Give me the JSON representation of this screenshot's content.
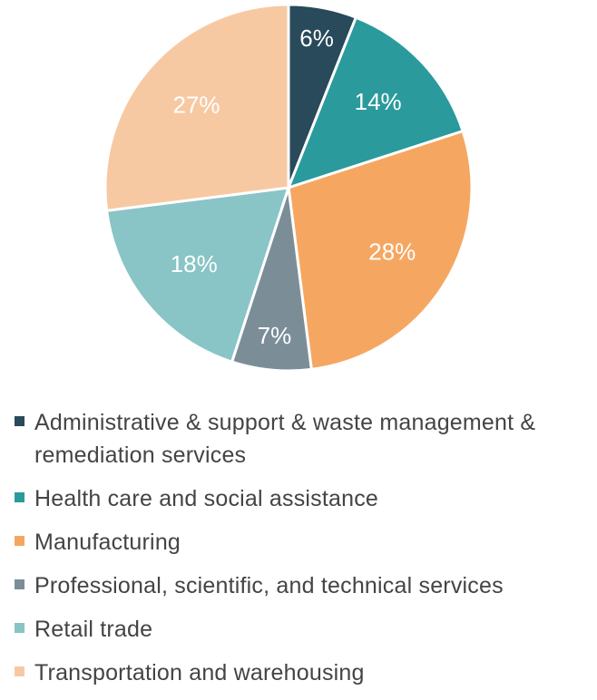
{
  "chart_data": {
    "type": "pie",
    "categories": [
      "Administrative & support & waste management & remediation services",
      "Health care and social assistance",
      "Manufacturing",
      "Professional, scientific, and technical services",
      "Retail trade",
      "Transportation and warehousing"
    ],
    "values": [
      6,
      14,
      28,
      7,
      18,
      27
    ],
    "value_labels": [
      "6%",
      "14%",
      "28%",
      "7%",
      "18%",
      "27%"
    ],
    "colors": [
      "#284a5a",
      "#2a9a9c",
      "#f5a762",
      "#7b8e98",
      "#89c4c6",
      "#f7c9a3"
    ],
    "legend": "bottom"
  }
}
